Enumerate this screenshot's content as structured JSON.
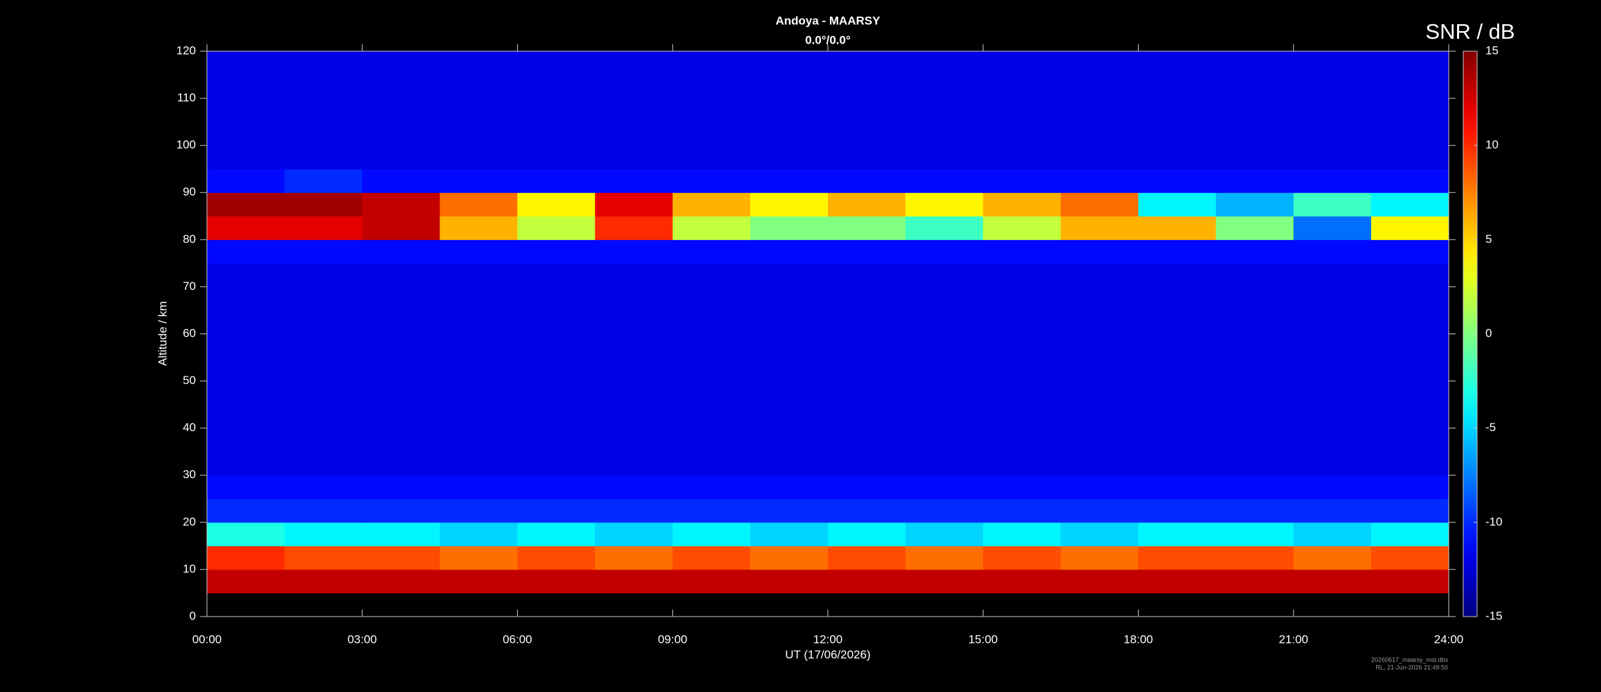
{
  "chart_data": {
    "type": "heatmap",
    "title": "Andoya - MAARSY",
    "subtitle": "0.0°/0.0°",
    "x_label": "UT (17/06/2026)",
    "y_label": "Altitude / km",
    "colorbar_label": "SNR / dB",
    "footnotes": [
      "20260617_maarsy_mst.dbs",
      "RL, 21-Jun-2026 21:49:50"
    ],
    "colormap": "jet",
    "xlim": [
      0,
      24
    ],
    "xticks": [
      {
        "value": 0,
        "label": "00:00"
      },
      {
        "value": 3,
        "label": "03:00"
      },
      {
        "value": 6,
        "label": "06:00"
      },
      {
        "value": 9,
        "label": "09:00"
      },
      {
        "value": 12,
        "label": "12:00"
      },
      {
        "value": 15,
        "label": "15:00"
      },
      {
        "value": 18,
        "label": "18:00"
      },
      {
        "value": 21,
        "label": "21:00"
      },
      {
        "value": 24,
        "label": "24:00"
      }
    ],
    "ylim": [
      0,
      120
    ],
    "yticks": [
      0,
      10,
      20,
      30,
      40,
      50,
      60,
      70,
      80,
      90,
      100,
      110,
      120
    ],
    "zlim": [
      -15,
      15
    ],
    "zticks": [
      -15,
      -10,
      -5,
      0,
      5,
      10,
      15
    ],
    "x_bins": [
      0,
      1.5,
      3,
      4.5,
      6,
      7.5,
      9,
      10.5,
      12,
      13.5,
      15,
      16.5,
      18,
      19.5,
      21,
      22.5,
      24
    ],
    "y_bins": [
      5,
      10,
      15,
      20,
      25,
      30,
      35,
      40,
      45,
      50,
      55,
      60,
      65,
      70,
      75,
      80,
      85,
      90,
      95,
      100,
      105,
      110,
      115,
      120
    ],
    "z": [
      [
        13,
        13,
        13,
        13,
        13,
        13,
        13,
        13,
        13,
        13,
        13,
        13,
        13,
        13,
        13,
        13
      ],
      [
        10,
        9,
        9,
        8,
        9,
        8,
        9,
        8,
        9,
        8,
        9,
        8,
        9,
        9,
        8,
        9
      ],
      [
        -3,
        -4,
        -4,
        -5,
        -4,
        -5,
        -4,
        -5,
        -4,
        -5,
        -4,
        -5,
        -4,
        -4,
        -5,
        -4
      ],
      [
        -10,
        -10,
        -10,
        -10,
        -10,
        -10,
        -10,
        -10,
        -10,
        -10,
        -10,
        -10,
        -10,
        -10,
        -10,
        -10
      ],
      [
        -11,
        -11,
        -11,
        -11,
        -11,
        -11,
        -11,
        -11,
        -11,
        -11,
        -11,
        -11,
        -11,
        -11,
        -11,
        -11
      ],
      [
        -12,
        -12,
        -12,
        -12,
        -12,
        -12,
        -12,
        -12,
        -12,
        -12,
        -12,
        -12,
        -12,
        -12,
        -12,
        -12
      ],
      [
        -12,
        -12,
        -12,
        -12,
        -12,
        -12,
        -12,
        -12,
        -12,
        -12,
        -12,
        -12,
        -12,
        -12,
        -12,
        -12
      ],
      [
        -12,
        -12,
        -12,
        -12,
        -12,
        -12,
        -12,
        -12,
        -12,
        -12,
        -12,
        -12,
        -12,
        -12,
        -12,
        -12
      ],
      [
        -12,
        -12,
        -12,
        -12,
        -12,
        -12,
        -12,
        -12,
        -12,
        -12,
        -12,
        -12,
        -12,
        -12,
        -12,
        -12
      ],
      [
        -12,
        -12,
        -12,
        -12,
        -12,
        -12,
        -12,
        -12,
        -12,
        -12,
        -12,
        -12,
        -12,
        -12,
        -12,
        -12
      ],
      [
        -12,
        -12,
        -12,
        -12,
        -12,
        -12,
        -12,
        -12,
        -12,
        -12,
        -12,
        -12,
        -12,
        -12,
        -12,
        -12
      ],
      [
        -12,
        -12,
        -12,
        -12,
        -12,
        -12,
        -12,
        -12,
        -12,
        -12,
        -12,
        -12,
        -12,
        -12,
        -12,
        -12
      ],
      [
        -12,
        -12,
        -12,
        -12,
        -12,
        -12,
        -12,
        -12,
        -12,
        -12,
        -12,
        -12,
        -12,
        -12,
        -12,
        -12
      ],
      [
        -12,
        -12,
        -12,
        -12,
        -12,
        -12,
        -12,
        -12,
        -12,
        -12,
        -12,
        -12,
        -12,
        -12,
        -12,
        -12
      ],
      [
        -11,
        -11,
        -11,
        -11,
        -11,
        -11,
        -11,
        -11,
        -11,
        -11,
        -11,
        -11,
        -11,
        -11,
        -11,
        -11
      ],
      [
        12,
        12,
        13,
        6,
        2,
        10,
        2,
        0,
        0,
        -2,
        2,
        6,
        6,
        0,
        -8,
        4
      ],
      [
        14,
        14,
        13,
        8,
        4,
        12,
        6,
        4,
        6,
        4,
        6,
        8,
        -4,
        -6,
        -2,
        -4
      ],
      [
        -11,
        -10,
        -11,
        -11,
        -11,
        -11,
        -11,
        -11,
        -11,
        -11,
        -11,
        -11,
        -11,
        -11,
        -11,
        -11
      ],
      [
        -12,
        -12,
        -12,
        -12,
        -12,
        -12,
        -12,
        -12,
        -12,
        -12,
        -12,
        -12,
        -12,
        -12,
        -12,
        -12
      ],
      [
        -12,
        -12,
        -12,
        -12,
        -12,
        -12,
        -12,
        -12,
        -12,
        -12,
        -12,
        -12,
        -12,
        -12,
        -12,
        -12
      ],
      [
        -12,
        -12,
        -12,
        -12,
        -12,
        -12,
        -12,
        -12,
        -12,
        -12,
        -12,
        -12,
        -12,
        -12,
        -12,
        -12
      ],
      [
        -12,
        -12,
        -12,
        -12,
        -12,
        -12,
        -12,
        -12,
        -12,
        -12,
        -12,
        -12,
        -12,
        -12,
        -12,
        -12
      ],
      [
        -12,
        -12,
        -12,
        -12,
        -12,
        -12,
        -12,
        -12,
        -12,
        -12,
        -12,
        -12,
        -12,
        -12,
        -12,
        -12
      ]
    ]
  }
}
